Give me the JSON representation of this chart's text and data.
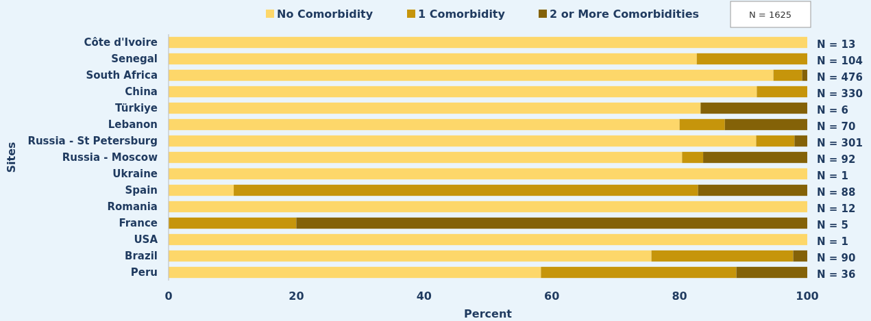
{
  "chart_data": {
    "type": "bar",
    "orientation": "horizontal",
    "stacked": true,
    "xlabel": "Percent",
    "ylabel": "Sites",
    "legend": "top",
    "grid": false,
    "categories": [
      "Côte d'Ivoire",
      "Senegal",
      "South Africa",
      "China",
      "Türkiye",
      "Lebanon",
      "Russia - St Petersburg",
      "Russia - Moscow",
      "Ukraine",
      "Spain",
      "Romania",
      "France",
      "USA",
      "Brazil",
      "Peru"
    ],
    "series": [
      {
        "name": "No Comorbidity",
        "color": "#fdd76a",
        "values": [
          100,
          82.7,
          94.7,
          92.1,
          83.3,
          80.0,
          92.0,
          80.4,
          100,
          10.2,
          100,
          0,
          100,
          75.6,
          58.3
        ]
      },
      {
        "name": "1 Comorbidity",
        "color": "#c6950b",
        "values": [
          0,
          17.3,
          4.5,
          7.9,
          0,
          7.1,
          6.0,
          3.3,
          0,
          72.7,
          0,
          20,
          0,
          22.2,
          30.6
        ]
      },
      {
        "name": "2 or More Comorbidities",
        "color": "#846208",
        "values": [
          0,
          0,
          0.8,
          0,
          16.7,
          12.9,
          2.0,
          16.3,
          0,
          17.1,
          0,
          80,
          0,
          2.2,
          11.1
        ]
      }
    ],
    "xlim": [
      0,
      100
    ],
    "xticks": [
      0,
      20,
      40,
      60,
      80,
      100
    ],
    "annotations": [
      "N = 1625",
      "N = 13",
      "N = 104",
      "N = 476",
      "N = 330",
      "N = 6",
      "N = 70",
      "N = 301",
      "N = 92",
      "N = 1",
      "N = 88",
      "N = 12",
      "N = 5",
      "N = 1",
      "N = 90",
      "N = 36"
    ]
  }
}
